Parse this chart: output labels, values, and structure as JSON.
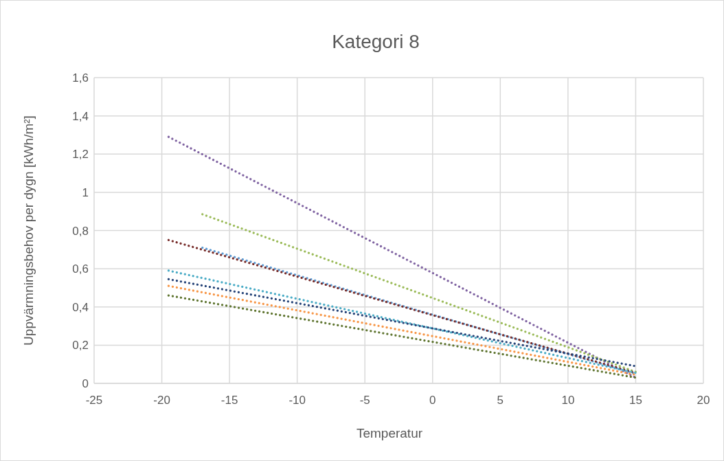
{
  "chart_data": {
    "type": "line",
    "title": "Kategori 8",
    "xlabel": "Temperatur",
    "ylabel": "Uppvärmningsbehov per dygn  [kWh/m²]",
    "xlim": [
      -25,
      20
    ],
    "xticks": [
      -25,
      -20,
      -15,
      -10,
      -5,
      0,
      5,
      10,
      15,
      20
    ],
    "ylim": [
      0,
      1.6
    ],
    "yticks": [
      {
        "value": 0,
        "label": "0"
      },
      {
        "value": 0.2,
        "label": "0,2"
      },
      {
        "value": 0.4,
        "label": "0,4"
      },
      {
        "value": 0.6,
        "label": "0,6"
      },
      {
        "value": 0.8,
        "label": "0,8"
      },
      {
        "value": 1,
        "label": "1"
      },
      {
        "value": 1.2,
        "label": "1,2"
      },
      {
        "value": 1.4,
        "label": "1,4"
      },
      {
        "value": 1.6,
        "label": "1,6"
      }
    ],
    "grid": true,
    "line_style": "dotted",
    "marker": "none",
    "series": [
      {
        "color": "#8064a2",
        "x": [
          -19.5,
          15
        ],
        "values": [
          1.29,
          0.03
        ]
      },
      {
        "color": "#9bbb59",
        "x": [
          -17,
          15
        ],
        "values": [
          0.885,
          0.06
        ]
      },
      {
        "color": "#5b9bd5",
        "x": [
          -17,
          15
        ],
        "values": [
          0.71,
          0.05
        ]
      },
      {
        "color": "#772c2a",
        "x": [
          -19.5,
          15
        ],
        "values": [
          0.75,
          0.055
        ]
      },
      {
        "color": "#4bacc6",
        "x": [
          -19.5,
          15
        ],
        "values": [
          0.59,
          0.055
        ]
      },
      {
        "color": "#264478",
        "x": [
          -19.5,
          15
        ],
        "values": [
          0.545,
          0.09
        ]
      },
      {
        "color": "#f79646",
        "x": [
          -19.5,
          15
        ],
        "values": [
          0.51,
          0.045
        ]
      },
      {
        "color": "#5f7530",
        "x": [
          -19.5,
          15
        ],
        "values": [
          0.46,
          0.03
        ]
      }
    ]
  }
}
